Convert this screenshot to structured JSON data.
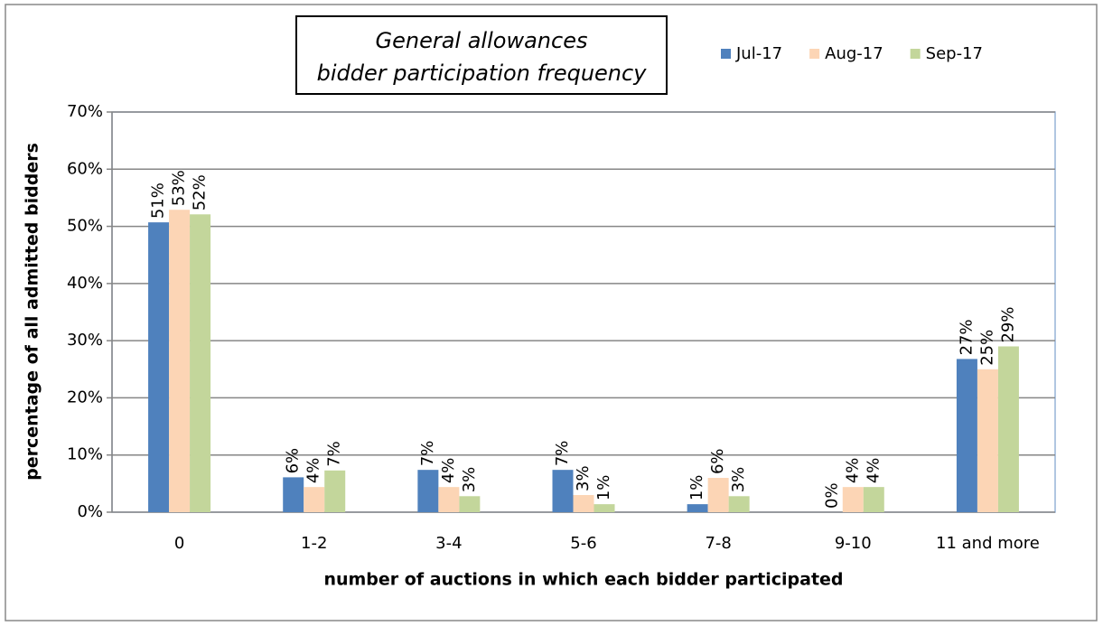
{
  "chart_data": {
    "type": "bar",
    "title": [
      "General allowances",
      "bidder participation frequency"
    ],
    "x_label": "number of auctions in which each bidder participated",
    "y_label": "percentage of all admitted bidders",
    "categories": [
      "0",
      "1-2",
      "3-4",
      "5-6",
      "7-8",
      "9-10",
      "11 and more"
    ],
    "series": [
      {
        "name": "Jul-17",
        "color": "#4f81bd",
        "values": [
          50.7,
          6.1,
          7.4,
          7.4,
          1.4,
          0,
          26.8
        ],
        "value_labels": [
          "51%",
          "6%",
          "7%",
          "7%",
          "1%",
          "0%",
          "27%"
        ]
      },
      {
        "name": "Aug-17",
        "color": "#fcd5b5",
        "values": [
          52.9,
          4.4,
          4.4,
          3.0,
          6.0,
          4.4,
          25.0
        ],
        "value_labels": [
          "53%",
          "4%",
          "4%",
          "3%",
          "6%",
          "4%",
          "25%"
        ]
      },
      {
        "name": "Sep-17",
        "color": "#c3d69b",
        "values": [
          52.1,
          7.3,
          2.8,
          1.4,
          2.8,
          4.4,
          29.0
        ],
        "value_labels": [
          "52%",
          "7%",
          "3%",
          "1%",
          "3%",
          "4%",
          "29%"
        ]
      }
    ],
    "ylim": [
      0,
      70
    ],
    "yticks": [
      {
        "value": 0,
        "label": "0%"
      },
      {
        "value": 10,
        "label": "10%"
      },
      {
        "value": 20,
        "label": "20%"
      },
      {
        "value": 30,
        "label": "30%"
      },
      {
        "value": 40,
        "label": "40%"
      },
      {
        "value": 50,
        "label": "50%"
      },
      {
        "value": 60,
        "label": "60%"
      },
      {
        "value": 70,
        "label": "70%"
      }
    ],
    "grid": true,
    "legend": "top-right"
  }
}
